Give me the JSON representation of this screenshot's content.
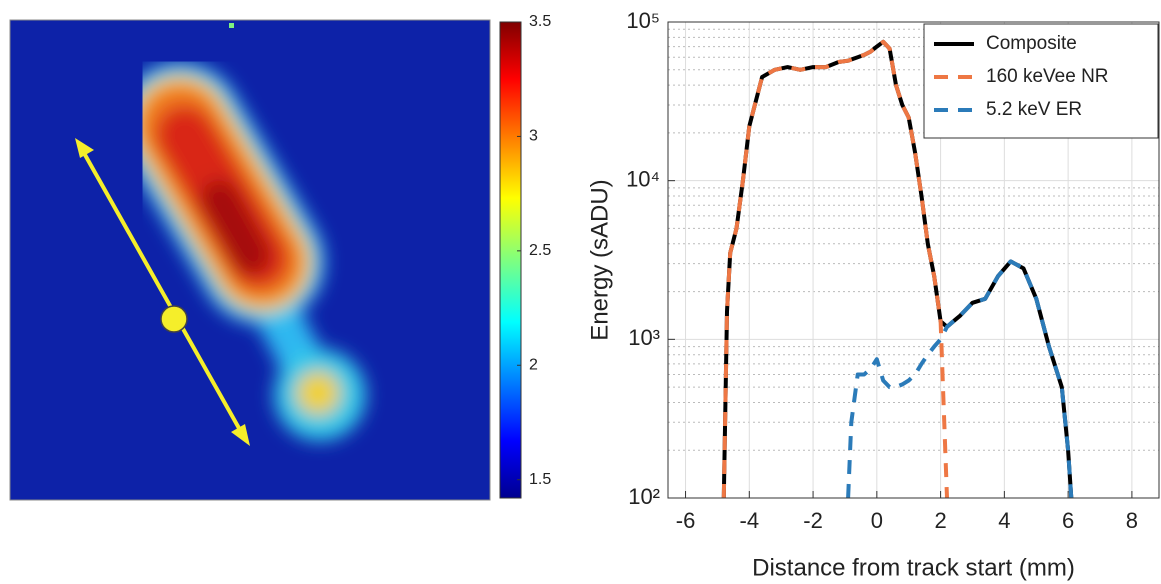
{
  "chart_data": [
    {
      "type": "heatmap",
      "colormap": "jet",
      "clim": [
        1.42,
        3.5
      ],
      "cticks": [
        1.5,
        2,
        2.5,
        3,
        3.5
      ]
    },
    {
      "type": "line",
      "ylog": true,
      "grid": true,
      "minor_grid": true,
      "xlabel": "Distance from track start (mm)",
      "ylabel": "Energy (sADU)",
      "xlim": [
        -6.55,
        8.85
      ],
      "xticks": [
        -6,
        -4,
        -2,
        0,
        2,
        4,
        6,
        8
      ],
      "ylim": [
        100,
        100000
      ],
      "yticks": [
        {
          "value": 100,
          "label": "10²"
        },
        {
          "value": 1000,
          "label": "10³"
        },
        {
          "value": 10000,
          "label": "10⁴"
        },
        {
          "value": 100000,
          "label": "10⁵"
        }
      ],
      "legend": "upper right",
      "x": [
        -4.8,
        -4.7,
        -4.6,
        -4.4,
        -4.2,
        -4,
        -3.6,
        -3.2,
        -2.8,
        -2.4,
        -2,
        -1.6,
        -1.2,
        -0.9,
        -0.8,
        -0.6,
        -0.4,
        -0.2,
        0,
        0.2,
        0.4,
        0.6,
        0.8,
        1,
        1.2,
        1.4,
        1.6,
        1.8,
        2,
        2.2,
        2.4,
        2.6,
        3,
        3.4,
        3.8,
        4.2,
        4.6,
        5,
        5.4,
        5.8,
        6,
        6.1
      ],
      "series": [
        {
          "name": "Composite",
          "color": "#000000",
          "dashed": false,
          "values": [
            100,
            1500,
            3500,
            5000,
            10000,
            22000,
            45000,
            50000,
            52000,
            50000,
            52000,
            52000,
            56000,
            57000,
            58000,
            60000,
            62000,
            65000,
            70000,
            75000,
            68000,
            40000,
            30000,
            25000,
            15000,
            8000,
            4000,
            2500,
            1300,
            1200,
            1300,
            1400,
            1700,
            1800,
            2500,
            3100,
            2800,
            1800,
            900,
            500,
            200,
            100
          ]
        },
        {
          "name": "160 keVee NR",
          "color": "#ee7744",
          "dashed": true,
          "values": [
            100,
            1500,
            3500,
            5000,
            10000,
            22000,
            45000,
            50000,
            52000,
            50000,
            52000,
            52000,
            56000,
            57000,
            58000,
            60000,
            62000,
            65000,
            70000,
            75000,
            68000,
            40000,
            30000,
            25000,
            15000,
            8000,
            4000,
            2500,
            1300,
            100,
            null,
            null,
            null,
            null,
            null,
            null,
            null,
            null,
            null,
            null,
            null,
            null
          ]
        },
        {
          "name": "5.2 keV ER",
          "color": "#2b7bb9",
          "dashed": true,
          "values": [
            null,
            null,
            null,
            null,
            null,
            null,
            null,
            null,
            null,
            null,
            null,
            null,
            null,
            100,
            300,
            600,
            600,
            650,
            750,
            550,
            500,
            500,
            520,
            550,
            600,
            700,
            800,
            900,
            1000,
            1200,
            1300,
            1400,
            1700,
            1800,
            2500,
            3100,
            2800,
            1800,
            900,
            500,
            200,
            100
          ]
        }
      ]
    }
  ]
}
